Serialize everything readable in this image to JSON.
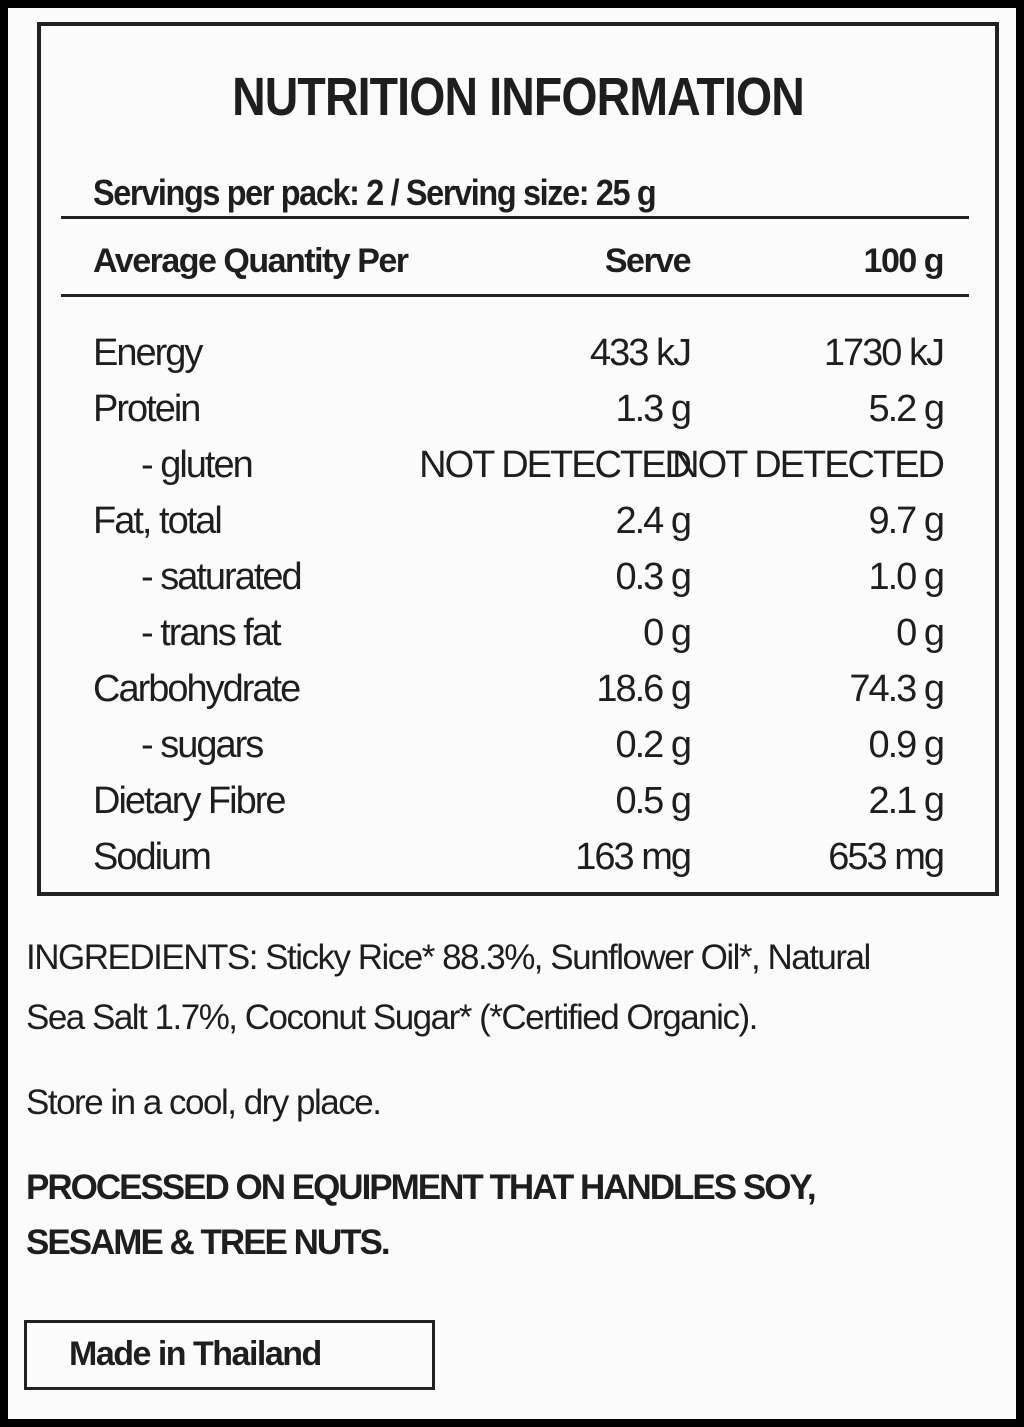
{
  "panel": {
    "title": "NUTRITION INFORMATION",
    "servings": "Servings per pack: 2 / Serving size: 25 g",
    "headers": [
      "Average Quantity Per",
      "Serve",
      "100 g"
    ],
    "rows": [
      {
        "label": "Energy",
        "serve": "433 kJ",
        "per100": "1730 kJ",
        "sub": false
      },
      {
        "label": "Protein",
        "serve": "1.3 g",
        "per100": "5.2 g",
        "sub": false
      },
      {
        "label": "- gluten",
        "serve": "NOT DETECTED",
        "per100": "NOT DETECTED",
        "sub": true
      },
      {
        "label": "Fat, total",
        "serve": "2.4 g",
        "per100": "9.7 g",
        "sub": false
      },
      {
        "label": "- saturated",
        "serve": "0.3 g",
        "per100": "1.0 g",
        "sub": true
      },
      {
        "label": "- trans fat",
        "serve": "0 g",
        "per100": "0 g",
        "sub": true
      },
      {
        "label": "Carbohydrate",
        "serve": "18.6 g",
        "per100": "74.3 g",
        "sub": false
      },
      {
        "label": "- sugars",
        "serve": "0.2 g",
        "per100": "0.9 g",
        "sub": true
      },
      {
        "label": "Dietary Fibre",
        "serve": "0.5 g",
        "per100": "2.1 g",
        "sub": false
      },
      {
        "label": "Sodium",
        "serve": "163 mg",
        "per100": "653 mg",
        "sub": false
      }
    ]
  },
  "ingredients": {
    "line1": "INGREDIENTS: Sticky Rice* 88.3%, Sunflower Oil*, Natural",
    "line2": "Sea Salt 1.7%, Coconut Sugar* (*Certified Organic)."
  },
  "storage": "Store in a cool, dry place.",
  "allergen": {
    "line1": "PROCESSED ON EQUIPMENT THAT HANDLES SOY,",
    "line2": "SESAME & TREE NUTS."
  },
  "origin": "Made in Thailand"
}
